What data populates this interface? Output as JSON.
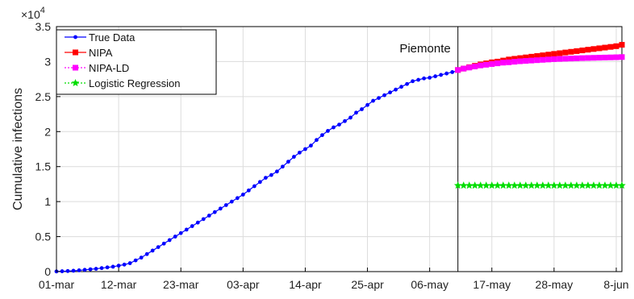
{
  "chart_data": {
    "type": "line",
    "title": "",
    "xlabel": "",
    "ylabel": "Cumulative infections",
    "y_exponent_label": "×10",
    "y_exponent_power": "4",
    "ylim": [
      0,
      3.5
    ],
    "grid": true,
    "legend_position": "top-left",
    "x_ticks": [
      0,
      11,
      22,
      33,
      44,
      55,
      66,
      77,
      88,
      99
    ],
    "x_tick_labels": [
      "01-mar",
      "12-mar",
      "23-mar",
      "03-apr",
      "14-apr",
      "25-apr",
      "06-may",
      "17-may",
      "28-may",
      "8-jun"
    ],
    "y_ticks": [
      0,
      0.5,
      1,
      1.5,
      2,
      2.5,
      3,
      3.5
    ],
    "y_tick_labels": [
      "0",
      "0.5",
      "1",
      "1.5",
      "2",
      "2.5",
      "3",
      "3.5"
    ],
    "annotation": {
      "text": "Piemonte",
      "x": 71
    },
    "series": [
      {
        "name": "True Data",
        "color": "#0000ff",
        "marker": "dot",
        "x": [
          0,
          1,
          2,
          3,
          4,
          5,
          6,
          7,
          8,
          9,
          10,
          11,
          12,
          13,
          14,
          15,
          16,
          17,
          18,
          19,
          20,
          21,
          22,
          23,
          24,
          25,
          26,
          27,
          28,
          29,
          30,
          31,
          32,
          33,
          34,
          35,
          36,
          37,
          38,
          39,
          40,
          41,
          42,
          43,
          44,
          45,
          46,
          47,
          48,
          49,
          50,
          51,
          52,
          53,
          54,
          55,
          56,
          57,
          58,
          59,
          60,
          61,
          62,
          63,
          64,
          65,
          66,
          67,
          68,
          69,
          70,
          71
        ],
        "values": [
          0.002,
          0.005,
          0.008,
          0.012,
          0.018,
          0.025,
          0.033,
          0.04,
          0.05,
          0.06,
          0.07,
          0.085,
          0.1,
          0.12,
          0.16,
          0.2,
          0.25,
          0.3,
          0.35,
          0.4,
          0.45,
          0.5,
          0.55,
          0.6,
          0.65,
          0.7,
          0.75,
          0.8,
          0.85,
          0.9,
          0.95,
          1.0,
          1.05,
          1.1,
          1.16,
          1.22,
          1.28,
          1.34,
          1.38,
          1.43,
          1.5,
          1.57,
          1.64,
          1.7,
          1.75,
          1.8,
          1.88,
          1.95,
          2.01,
          2.06,
          2.1,
          2.15,
          2.2,
          2.27,
          2.32,
          2.38,
          2.44,
          2.48,
          2.52,
          2.56,
          2.6,
          2.64,
          2.68,
          2.72,
          2.74,
          2.76,
          2.77,
          2.79,
          2.81,
          2.83,
          2.85,
          2.87
        ]
      },
      {
        "name": "NIPA",
        "color": "#ff0000",
        "marker": "square",
        "x": [
          71,
          72,
          73,
          74,
          75,
          76,
          77,
          78,
          79,
          80,
          81,
          82,
          83,
          84,
          85,
          86,
          87,
          88,
          89,
          90,
          91,
          92,
          93,
          94,
          95,
          96,
          97,
          98,
          99,
          100
        ],
        "values": [
          2.88,
          2.9,
          2.92,
          2.94,
          2.96,
          2.975,
          2.99,
          3.0,
          3.015,
          3.03,
          3.04,
          3.05,
          3.06,
          3.07,
          3.08,
          3.09,
          3.1,
          3.11,
          3.12,
          3.13,
          3.14,
          3.15,
          3.16,
          3.17,
          3.18,
          3.19,
          3.2,
          3.21,
          3.22,
          3.24
        ]
      },
      {
        "name": "NIPA-LD",
        "color": "#ff00ff",
        "marker": "square",
        "x": [
          71,
          72,
          73,
          74,
          75,
          76,
          77,
          78,
          79,
          80,
          81,
          82,
          83,
          84,
          85,
          86,
          87,
          88,
          89,
          90,
          91,
          92,
          93,
          94,
          95,
          96,
          97,
          98,
          99,
          100
        ],
        "values": [
          2.88,
          2.9,
          2.915,
          2.93,
          2.945,
          2.955,
          2.965,
          2.975,
          2.985,
          2.99,
          2.998,
          3.005,
          3.01,
          3.015,
          3.02,
          3.025,
          3.03,
          3.035,
          3.038,
          3.041,
          3.044,
          3.047,
          3.05,
          3.052,
          3.054,
          3.056,
          3.058,
          3.06,
          3.062,
          3.065
        ]
      },
      {
        "name": "Logistic Regression",
        "color": "#00dd00",
        "marker": "star",
        "x": [
          71,
          72,
          73,
          74,
          75,
          76,
          77,
          78,
          79,
          80,
          81,
          82,
          83,
          84,
          85,
          86,
          87,
          88,
          89,
          90,
          91,
          92,
          93,
          94,
          95,
          96,
          97,
          98,
          99,
          100
        ],
        "values": [
          1.23,
          1.23,
          1.23,
          1.23,
          1.23,
          1.23,
          1.23,
          1.23,
          1.23,
          1.23,
          1.23,
          1.23,
          1.23,
          1.23,
          1.23,
          1.23,
          1.23,
          1.23,
          1.23,
          1.23,
          1.23,
          1.23,
          1.23,
          1.23,
          1.23,
          1.23,
          1.23,
          1.23,
          1.23,
          1.23
        ]
      }
    ]
  }
}
